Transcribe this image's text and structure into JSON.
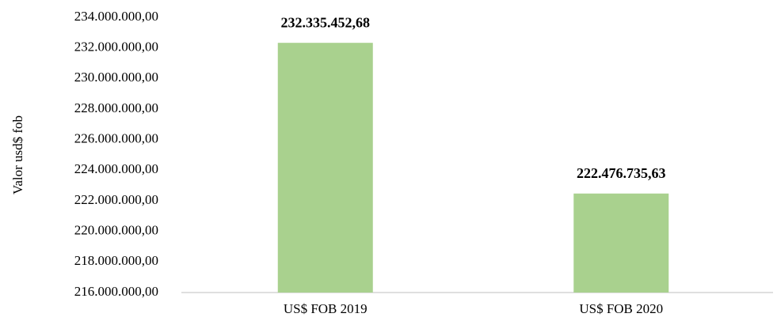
{
  "chart_data": {
    "type": "bar",
    "ylabel": "Valor usd$ fob",
    "categories": [
      "US$ FOB 2019",
      "US$ FOB 2020"
    ],
    "values": [
      232335452.68,
      222476735.63
    ],
    "value_labels": [
      "232.335.452,68",
      "222.476.735,63"
    ],
    "color": "#a9d18e",
    "ylim": [
      216000000,
      234000000
    ],
    "yticks": [
      {
        "value": 216000000,
        "label": "216.000.000,00"
      },
      {
        "value": 218000000,
        "label": "218.000.000,00"
      },
      {
        "value": 220000000,
        "label": "220.000.000,00"
      },
      {
        "value": 222000000,
        "label": "222.000.000,00"
      },
      {
        "value": 224000000,
        "label": "224.000.000,00"
      },
      {
        "value": 226000000,
        "label": "226.000.000,00"
      },
      {
        "value": 228000000,
        "label": "228.000.000,00"
      },
      {
        "value": 230000000,
        "label": "230.000.000,00"
      },
      {
        "value": 232000000,
        "label": "232.000.000,00"
      },
      {
        "value": 234000000,
        "label": "234.000.000,00"
      }
    ],
    "grid": false
  }
}
